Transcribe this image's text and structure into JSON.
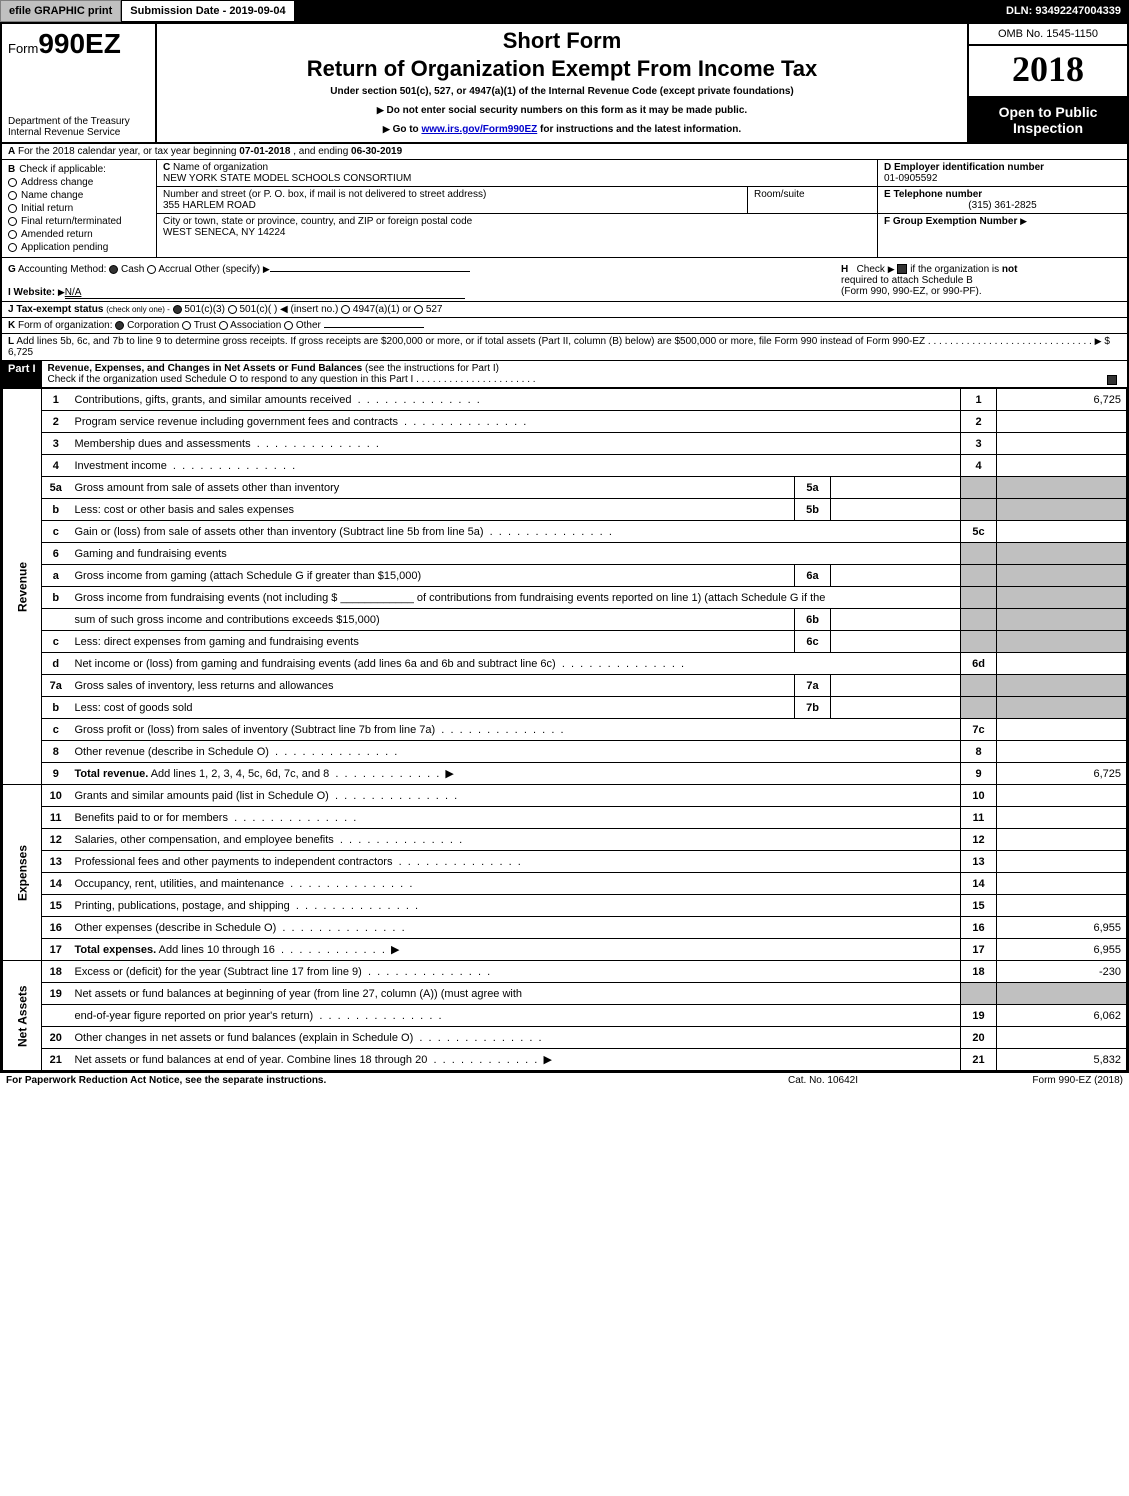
{
  "topbar": {
    "efile_btn": "efile GRAPHIC print",
    "submission_date_label": "Submission Date - 2019-09-04",
    "dln": "DLN: 93492247004339"
  },
  "header": {
    "form_prefix": "Form",
    "form_number": "990EZ",
    "short_form": "Short Form",
    "title": "Return of Organization Exempt From Income Tax",
    "subtitle": "Under section 501(c), 527, or 4947(a)(1) of the Internal Revenue Code (except private foundations)",
    "warn1": "Do not enter social security numbers on this form as it may be made public.",
    "warn2_prefix": "Go to ",
    "warn2_link": "www.irs.gov/Form990EZ",
    "warn2_suffix": " for instructions and the latest information.",
    "dept1": "Department of the Treasury",
    "dept2": "Internal Revenue Service",
    "omb": "OMB No. 1545-1150",
    "year": "2018",
    "open_public": "Open to Public",
    "inspection": "Inspection"
  },
  "line_a": {
    "prefix": "A",
    "text1": "For the 2018 calendar year, or tax year beginning ",
    "begin": "07-01-2018",
    "text2": ", and ending ",
    "end": "06-30-2019"
  },
  "block_b": {
    "b_label": "B",
    "b_title": "Check if applicable:",
    "address_change": "Address change",
    "name_change": "Name change",
    "initial_return": "Initial return",
    "final_return": "Final return/terminated",
    "amended_return": "Amended return",
    "app_pending": "Application pending",
    "c_label": "C",
    "c_name_label": "Name of organization",
    "org_name": "NEW YORK STATE MODEL SCHOOLS CONSORTIUM",
    "street_label": "Number and street (or P. O. box, if mail is not delivered to street address)",
    "street": "355 HARLEM ROAD",
    "room_label": "Room/suite",
    "city_label": "City or town, state or province, country, and ZIP or foreign postal code",
    "city": "WEST SENECA, NY  14224",
    "d_label": "D Employer identification number",
    "ein": "01-0905592",
    "e_label": "E Telephone number",
    "phone": "(315) 361-2825",
    "f_label": "F Group Exemption Number"
  },
  "ghi": {
    "g_label": "G",
    "g_text": "Accounting Method:",
    "g_cash": "Cash",
    "g_accrual": "Accrual",
    "g_other": "Other (specify)",
    "i_label": "I Website:",
    "i_site": "N/A",
    "h_label": "H",
    "h_text1": "Check",
    "h_text2": "if the organization is ",
    "h_not": "not",
    "h_text3": " required to attach Schedule B",
    "h_text4": "(Form 990, 990-EZ, or 990-PF)."
  },
  "line_j": {
    "label": "J Tax-exempt status",
    "note": "(check only one) -",
    "opt1": "501(c)(3)",
    "opt2": "501(c)(  )",
    "insert": "(insert no.)",
    "opt3": "4947(a)(1) or",
    "opt4": "527"
  },
  "line_k": {
    "label": "K",
    "text": "Form of organization:",
    "corp": "Corporation",
    "trust": "Trust",
    "assoc": "Association",
    "other": "Other"
  },
  "line_l": {
    "label": "L",
    "text": "Add lines 5b, 6c, and 7b to line 9 to determine gross receipts. If gross receipts are $200,000 or more, or if total assets (Part II, column (B) below) are $500,000 or more, file Form 990 instead of Form 990-EZ",
    "gross": "$ 6,725"
  },
  "part1": {
    "label": "Part I",
    "title": "Revenue, Expenses, and Changes in Net Assets or Fund Balances",
    "title_paren": "(see the instructions for Part I)",
    "check_text": "Check if the organization used Schedule O to respond to any question in this Part I"
  },
  "sections": {
    "revenue": "Revenue",
    "expenses": "Expenses",
    "netassets": "Net Assets"
  },
  "rows": [
    {
      "n": "1",
      "d": "Contributions, gifts, grants, and similar amounts received",
      "rn": "1",
      "rv": "6,725"
    },
    {
      "n": "2",
      "d": "Program service revenue including government fees and contracts",
      "rn": "2",
      "rv": ""
    },
    {
      "n": "3",
      "d": "Membership dues and assessments",
      "rn": "3",
      "rv": ""
    },
    {
      "n": "4",
      "d": "Investment income",
      "rn": "4",
      "rv": ""
    },
    {
      "n": "5a",
      "d": "Gross amount from sale of assets other than inventory",
      "sn": "5a",
      "sv": "",
      "shade": true
    },
    {
      "n": "b",
      "d": "Less: cost or other basis and sales expenses",
      "sn": "5b",
      "sv": "",
      "shade": true
    },
    {
      "n": "c",
      "d": "Gain or (loss) from sale of assets other than inventory (Subtract line 5b from line 5a)",
      "rn": "5c",
      "rv": ""
    },
    {
      "n": "6",
      "d": "Gaming and fundraising events",
      "shade": true,
      "noval": true
    },
    {
      "n": "a",
      "d": "Gross income from gaming (attach Schedule G if greater than $15,000)",
      "sn": "6a",
      "sv": "",
      "shade": true
    },
    {
      "n": "b",
      "d": "Gross income from fundraising events (not including $ ____________ of contributions from fundraising events reported on line 1) (attach Schedule G if the",
      "shade": true,
      "noval": true
    },
    {
      "n": "",
      "d": "sum of such gross income and contributions exceeds $15,000)",
      "sn": "6b",
      "sv": "",
      "shade": true
    },
    {
      "n": "c",
      "d": "Less: direct expenses from gaming and fundraising events",
      "sn": "6c",
      "sv": "",
      "shade": true
    },
    {
      "n": "d",
      "d": "Net income or (loss) from gaming and fundraising events (add lines 6a and 6b and subtract line 6c)",
      "rn": "6d",
      "rv": ""
    },
    {
      "n": "7a",
      "d": "Gross sales of inventory, less returns and allowances",
      "sn": "7a",
      "sv": "",
      "shade": true
    },
    {
      "n": "b",
      "d": "Less: cost of goods sold",
      "sn": "7b",
      "sv": "",
      "shade": true
    },
    {
      "n": "c",
      "d": "Gross profit or (loss) from sales of inventory (Subtract line 7b from line 7a)",
      "rn": "7c",
      "rv": ""
    },
    {
      "n": "8",
      "d": "Other revenue (describe in Schedule O)",
      "rn": "8",
      "rv": ""
    },
    {
      "n": "9",
      "d": "Total revenue. Add lines 1, 2, 3, 4, 5c, 6d, 7c, and 8",
      "rn": "9",
      "rv": "6,725",
      "bold": true,
      "arrow": true
    }
  ],
  "exp_rows": [
    {
      "n": "10",
      "d": "Grants and similar amounts paid (list in Schedule O)",
      "rn": "10",
      "rv": ""
    },
    {
      "n": "11",
      "d": "Benefits paid to or for members",
      "rn": "11",
      "rv": ""
    },
    {
      "n": "12",
      "d": "Salaries, other compensation, and employee benefits",
      "rn": "12",
      "rv": ""
    },
    {
      "n": "13",
      "d": "Professional fees and other payments to independent contractors",
      "rn": "13",
      "rv": ""
    },
    {
      "n": "14",
      "d": "Occupancy, rent, utilities, and maintenance",
      "rn": "14",
      "rv": ""
    },
    {
      "n": "15",
      "d": "Printing, publications, postage, and shipping",
      "rn": "15",
      "rv": ""
    },
    {
      "n": "16",
      "d": "Other expenses (describe in Schedule O)",
      "rn": "16",
      "rv": "6,955"
    },
    {
      "n": "17",
      "d": "Total expenses. Add lines 10 through 16",
      "rn": "17",
      "rv": "6,955",
      "bold": true,
      "arrow": true
    }
  ],
  "na_rows": [
    {
      "n": "18",
      "d": "Excess or (deficit) for the year (Subtract line 17 from line 9)",
      "rn": "18",
      "rv": "-230"
    },
    {
      "n": "19",
      "d": "Net assets or fund balances at beginning of year (from line 27, column (A)) (must agree with",
      "shade": true,
      "noval": true
    },
    {
      "n": "",
      "d": "end-of-year figure reported on prior year's return)",
      "rn": "19",
      "rv": "6,062"
    },
    {
      "n": "20",
      "d": "Other changes in net assets or fund balances (explain in Schedule O)",
      "rn": "20",
      "rv": ""
    },
    {
      "n": "21",
      "d": "Net assets or fund balances at end of year. Combine lines 18 through 20",
      "rn": "21",
      "rv": "5,832",
      "arrow": true
    }
  ],
  "footer": {
    "pra": "For Paperwork Reduction Act Notice, see the separate instructions.",
    "catno": "Cat. No. 10642I",
    "formrev": "Form 990-EZ (2018)"
  }
}
